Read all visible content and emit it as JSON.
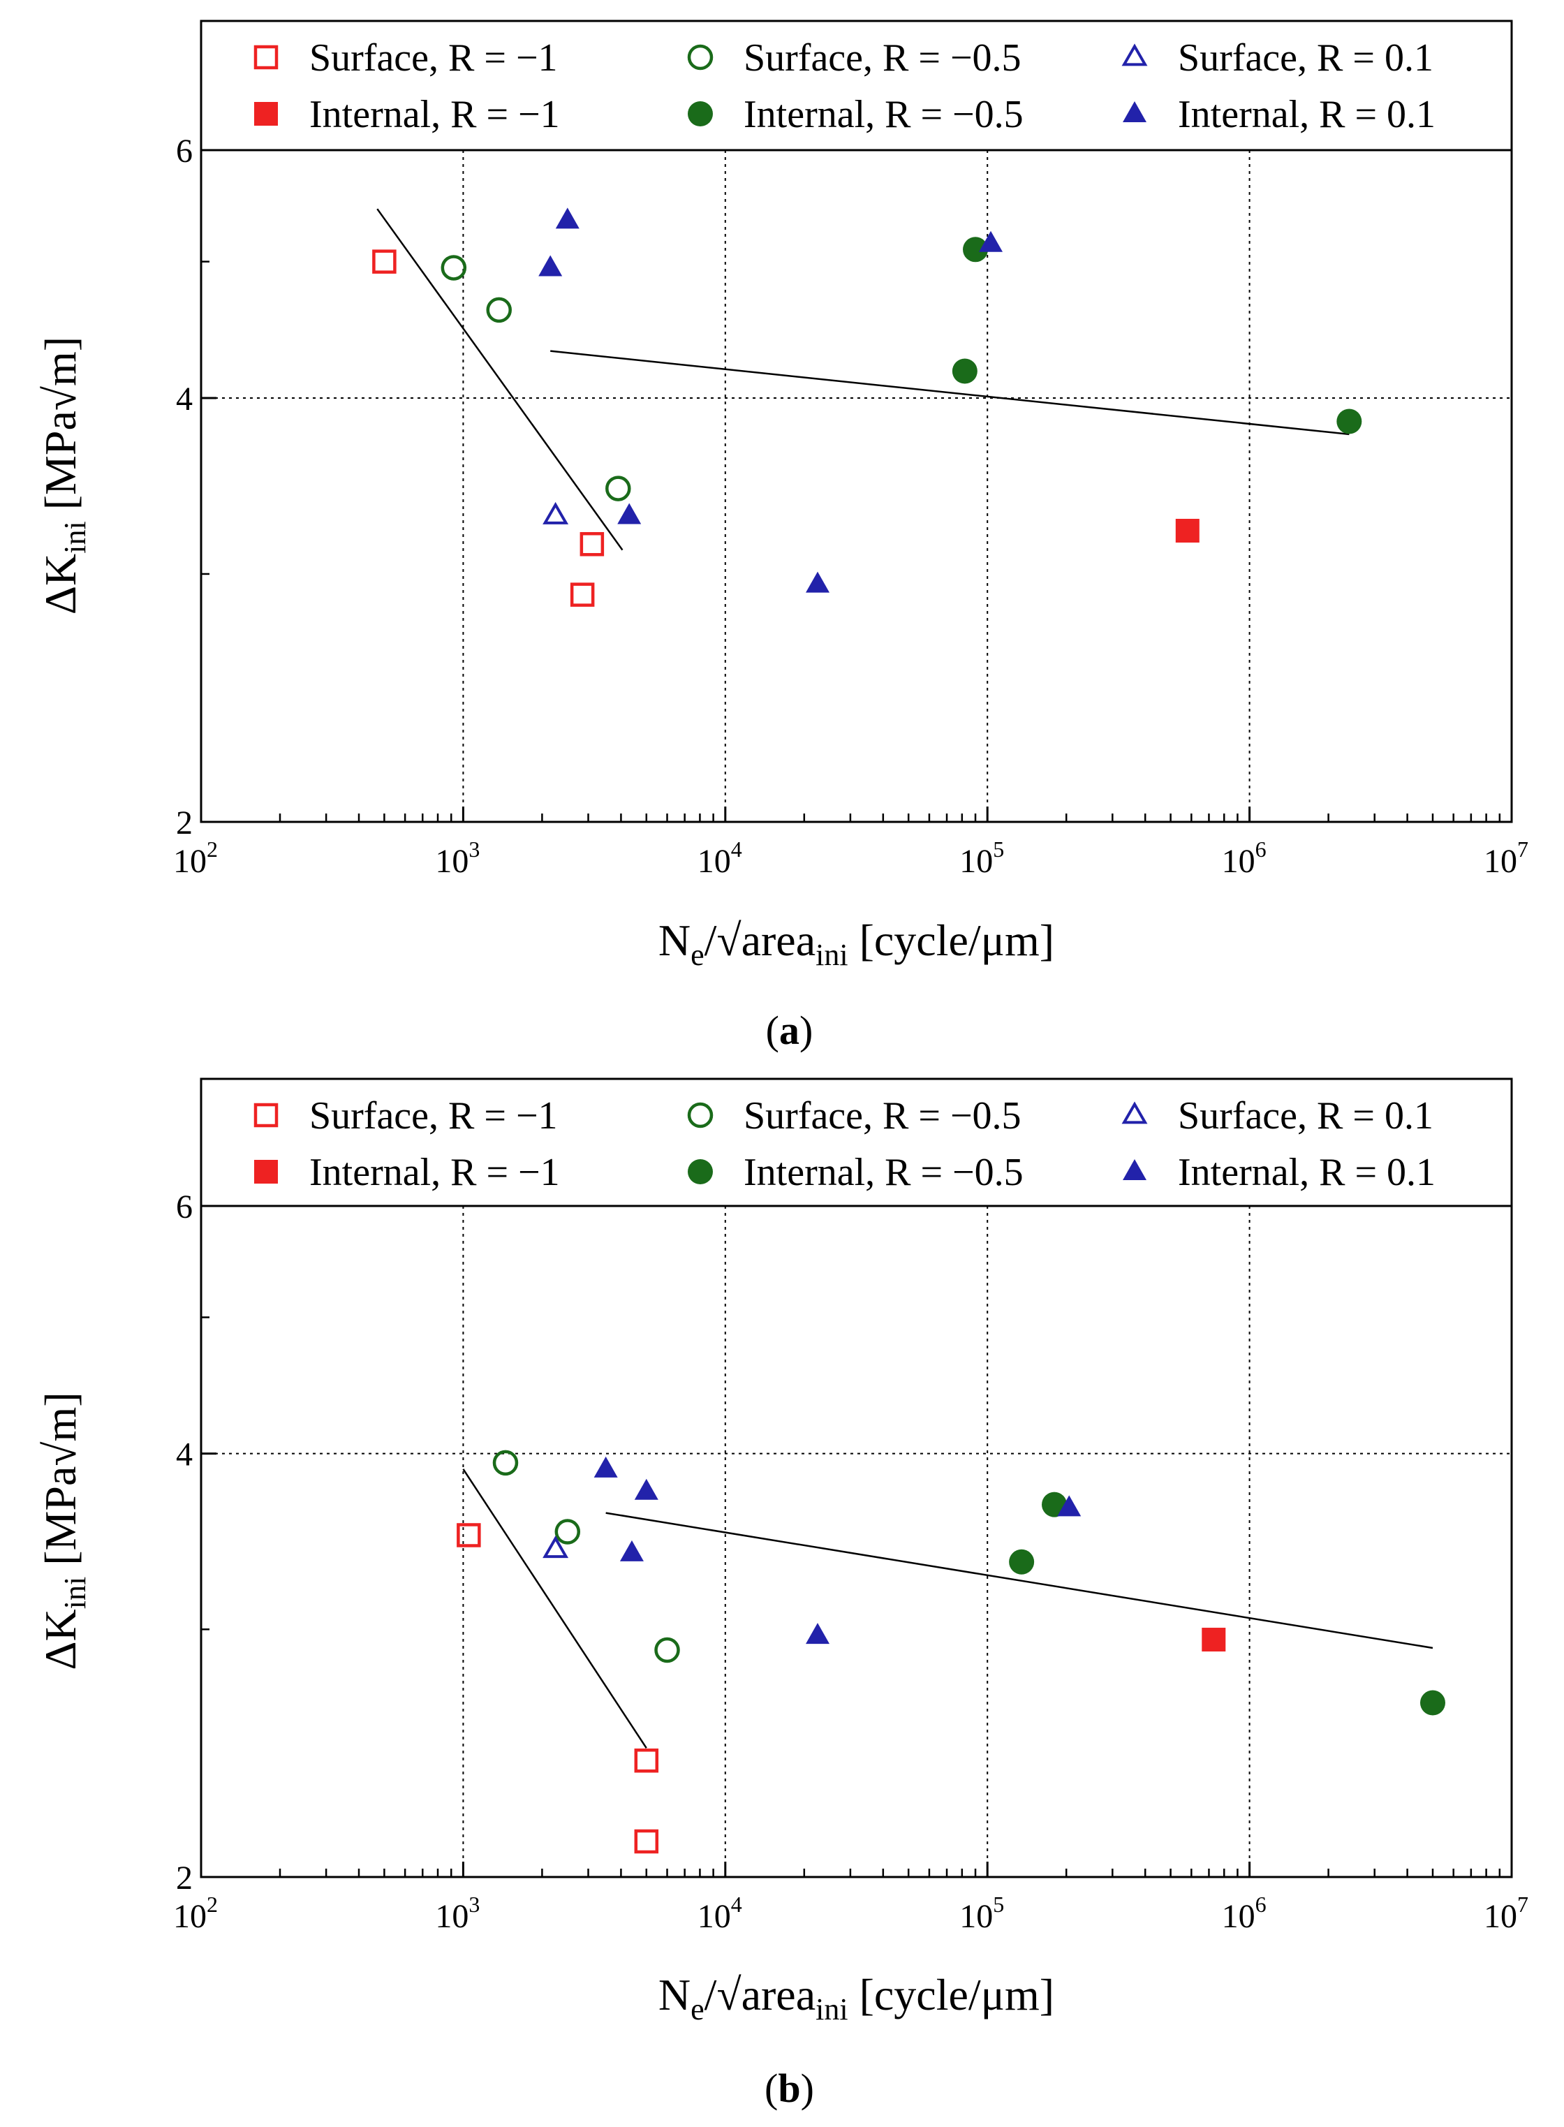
{
  "chart_data": [
    {
      "type": "scatter",
      "panel": "a",
      "caption_letter": "a",
      "xlabel_main": "N",
      "xlabel_sub": "e",
      "xlabel_mid": "/√area",
      "xlabel_sub2": "ini",
      "xlabel_unit": " [cycle/μm]",
      "ylabel_main": "ΔK",
      "ylabel_sub": "ini",
      "ylabel_unit": " [MPa√m]",
      "xscale": "log",
      "yscale": "log",
      "xlim": [
        100,
        10000000
      ],
      "ylim": [
        2,
        6
      ],
      "xticks": [
        {
          "base": "10",
          "exp": "2",
          "value": 100
        },
        {
          "base": "10",
          "exp": "3",
          "value": 1000
        },
        {
          "base": "10",
          "exp": "4",
          "value": 10000
        },
        {
          "base": "10",
          "exp": "5",
          "value": 100000
        },
        {
          "base": "10",
          "exp": "6",
          "value": 1000000
        },
        {
          "base": "10",
          "exp": "7",
          "value": 10000000
        }
      ],
      "yticks": [
        {
          "label": "2",
          "value": 2
        },
        {
          "label": "4",
          "value": 4
        },
        {
          "label": "6",
          "value": 6
        }
      ],
      "grid": true,
      "legend_position": "top, above plot",
      "series": [
        {
          "name": "Surface, R = −1",
          "marker": "square",
          "filled": false,
          "color": "#ee2222",
          "points": [
            [
              500,
              5.0
            ],
            [
              3100,
              3.15
            ],
            [
              2850,
              2.9
            ]
          ]
        },
        {
          "name": "Internal, R = −1",
          "marker": "square",
          "filled": true,
          "color": "#ee2222",
          "points": [
            [
              580000,
              3.22
            ]
          ]
        },
        {
          "name": "Surface, R = −0.5",
          "marker": "circle",
          "filled": false,
          "color": "#1a6b1a",
          "points": [
            [
              920,
              4.95
            ],
            [
              1370,
              4.62
            ],
            [
              3900,
              3.45
            ]
          ]
        },
        {
          "name": "Internal, R = −0.5",
          "marker": "circle",
          "filled": true,
          "color": "#1a6b1a",
          "points": [
            [
              90000,
              5.1
            ],
            [
              82000,
              4.18
            ],
            [
              2400000,
              3.85
            ]
          ]
        },
        {
          "name": "Surface, R = 0.1",
          "marker": "triangle",
          "filled": false,
          "color": "#2222aa",
          "points": [
            [
              2250,
              3.3
            ]
          ]
        },
        {
          "name": "Internal, R = 0.1",
          "marker": "triangle",
          "filled": true,
          "color": "#2222aa",
          "points": [
            [
              2500,
              5.35
            ],
            [
              2150,
              4.95
            ],
            [
              4300,
              3.3
            ],
            [
              22500,
              2.95
            ],
            [
              103000,
              5.15
            ]
          ]
        }
      ],
      "fit_lines": [
        {
          "x": [
            470,
            4050
          ],
          "y": [
            5.45,
            3.12
          ]
        },
        {
          "x": [
            2150,
            2400000
          ],
          "y": [
            4.32,
            3.77
          ]
        }
      ]
    },
    {
      "type": "scatter",
      "panel": "b",
      "caption_letter": "b",
      "xlabel_main": "N",
      "xlabel_sub": "e",
      "xlabel_mid": "/√area",
      "xlabel_sub2": "ini",
      "xlabel_unit": " [cycle/μm]",
      "ylabel_main": "ΔK",
      "ylabel_sub": "ini",
      "ylabel_unit": " [MPa√m]",
      "xscale": "log",
      "yscale": "log",
      "xlim": [
        100,
        10000000
      ],
      "ylim": [
        2,
        6
      ],
      "xticks": [
        {
          "base": "10",
          "exp": "2",
          "value": 100
        },
        {
          "base": "10",
          "exp": "3",
          "value": 1000
        },
        {
          "base": "10",
          "exp": "4",
          "value": 10000
        },
        {
          "base": "10",
          "exp": "5",
          "value": 100000
        },
        {
          "base": "10",
          "exp": "6",
          "value": 1000000
        },
        {
          "base": "10",
          "exp": "7",
          "value": 10000000
        }
      ],
      "yticks": [
        {
          "label": "2",
          "value": 2
        },
        {
          "label": "4",
          "value": 4
        },
        {
          "label": "6",
          "value": 6
        }
      ],
      "grid": true,
      "legend_position": "top, above plot",
      "series": [
        {
          "name": "Surface, R = −1",
          "marker": "square",
          "filled": false,
          "color": "#ee2222",
          "points": [
            [
              1050,
              3.5
            ],
            [
              5000,
              2.42
            ],
            [
              5000,
              2.12
            ]
          ]
        },
        {
          "name": "Internal, R = −1",
          "marker": "square",
          "filled": true,
          "color": "#ee2222",
          "points": [
            [
              730000,
              2.95
            ]
          ]
        },
        {
          "name": "Surface, R = −0.5",
          "marker": "circle",
          "filled": false,
          "color": "#1a6b1a",
          "points": [
            [
              1450,
              3.94
            ],
            [
              2500,
              3.52
            ],
            [
              6000,
              2.9
            ]
          ]
        },
        {
          "name": "Internal, R = −0.5",
          "marker": "circle",
          "filled": true,
          "color": "#1a6b1a",
          "points": [
            [
              180000,
              3.68
            ],
            [
              135000,
              3.35
            ],
            [
              5000000,
              2.66
            ]
          ]
        },
        {
          "name": "Surface, R = 0.1",
          "marker": "triangle",
          "filled": false,
          "color": "#2222aa",
          "points": [
            [
              2250,
              3.42
            ]
          ]
        },
        {
          "name": "Internal, R = 0.1",
          "marker": "triangle",
          "filled": true,
          "color": "#2222aa",
          "points": [
            [
              3500,
              3.9
            ],
            [
              5000,
              3.76
            ],
            [
              4400,
              3.4
            ],
            [
              22500,
              2.97
            ],
            [
              205000,
              3.66
            ]
          ]
        }
      ],
      "fit_lines": [
        {
          "x": [
            1000,
            5000
          ],
          "y": [
            3.9,
            2.47
          ]
        },
        {
          "x": [
            3500,
            5000000
          ],
          "y": [
            3.63,
            2.91
          ]
        }
      ]
    }
  ]
}
